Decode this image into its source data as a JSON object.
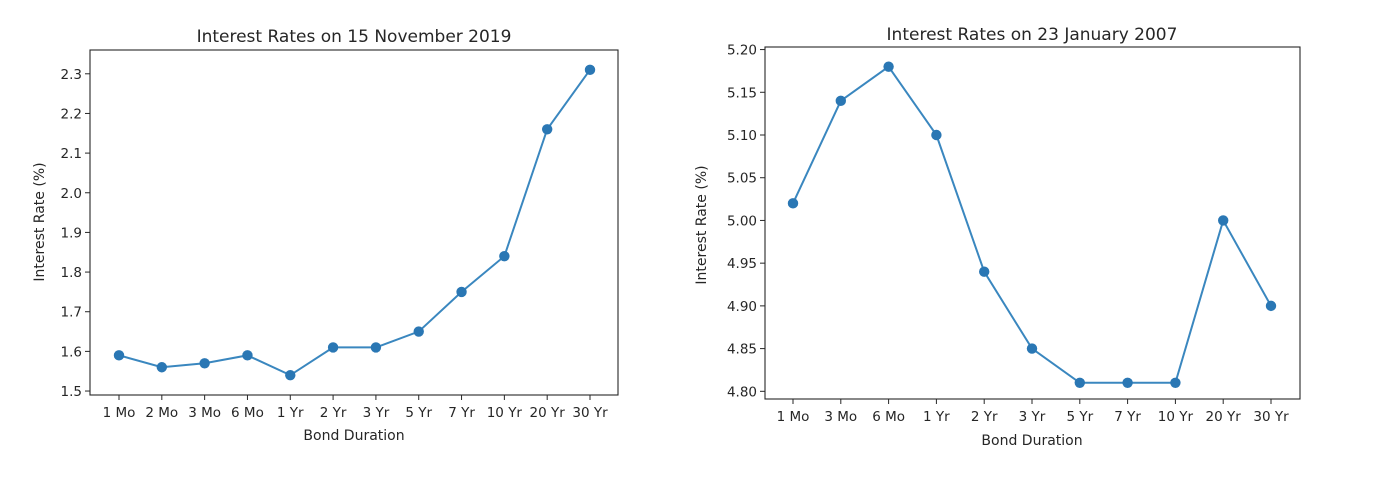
{
  "chart_data": [
    {
      "type": "line",
      "title": "Interest Rates on 15 November 2019",
      "xlabel": "Bond Duration",
      "ylabel": "Interest Rate (%)",
      "categories": [
        "1 Mo",
        "2 Mo",
        "3 Mo",
        "6 Mo",
        "1 Yr",
        "2 Yr",
        "3 Yr",
        "5 Yr",
        "7 Yr",
        "10 Yr",
        "20 Yr",
        "30 Yr"
      ],
      "values": [
        1.59,
        1.56,
        1.57,
        1.59,
        1.54,
        1.61,
        1.61,
        1.65,
        1.75,
        1.84,
        2.16,
        2.31
      ],
      "ylim": [
        1.49,
        2.36
      ],
      "yticks": [
        "1.5",
        "1.6",
        "1.7",
        "1.8",
        "1.9",
        "2.0",
        "2.1",
        "2.2",
        "2.3"
      ],
      "color": "#2a77b4",
      "grid": false,
      "markers": true
    },
    {
      "type": "line",
      "title": "Interest Rates on 23 January 2007",
      "xlabel": "Bond Duration",
      "ylabel": "Interest Rate (%)",
      "categories": [
        "1 Mo",
        "3 Mo",
        "6 Mo",
        "1 Yr",
        "2 Yr",
        "3 Yr",
        "5 Yr",
        "7 Yr",
        "10 Yr",
        "20 Yr",
        "30 Yr"
      ],
      "values": [
        5.02,
        5.14,
        5.18,
        5.1,
        4.94,
        4.85,
        4.81,
        4.81,
        4.81,
        5.0,
        4.9
      ],
      "ylim": [
        4.791,
        5.203
      ],
      "yticks": [
        "4.80",
        "4.85",
        "4.90",
        "4.95",
        "5.00",
        "5.05",
        "5.10",
        "5.15",
        "5.20"
      ],
      "color": "#2a77b4",
      "grid": false,
      "markers": true
    }
  ]
}
